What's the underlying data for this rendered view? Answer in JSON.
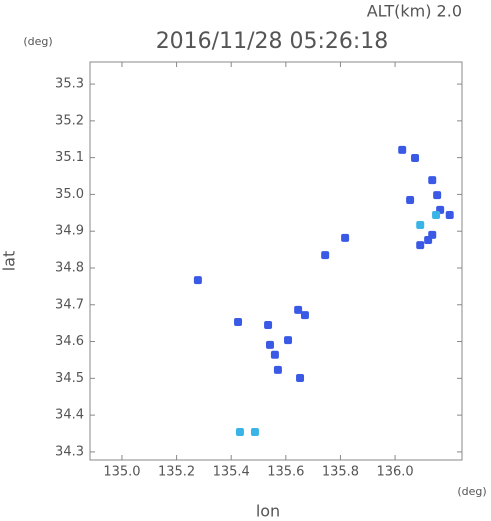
{
  "chart_data": {
    "type": "scatter",
    "title": "2016/11/28 05:26:18",
    "subtitle": "ALT(km) 2.0",
    "y_unit": "(deg)",
    "x_unit": "(deg)",
    "x_label": "lon",
    "y_label": "lat",
    "xlim": [
      134.883,
      136.245
    ],
    "ylim": [
      34.278,
      35.36
    ],
    "xticks": [
      {
        "value": 135,
        "label": "135.0"
      },
      135.2,
      135.4,
      135.6,
      135.8,
      {
        "value": 136,
        "label": "136.0"
      }
    ],
    "yticks": [
      34.3,
      34.4,
      34.5,
      34.6,
      34.7,
      34.8,
      34.9,
      {
        "value": 35,
        "label": "35.0"
      },
      35.1,
      35.2,
      35.3
    ],
    "series": [
      {
        "color": "#3a5ae6",
        "x": [
          136.026,
          136.073,
          136.136,
          136.154,
          136.165,
          136.2,
          136.136,
          136.121,
          136.092,
          136.055,
          135.535,
          135.645,
          135.67,
          135.56,
          135.571,
          135.542,
          135.652,
          135.425,
          135.608,
          135.278,
          135.817,
          135.744
        ],
        "y": [
          35.121,
          35.099,
          35.039,
          34.998,
          34.958,
          34.944,
          34.89,
          34.876,
          34.862,
          34.985,
          34.645,
          34.686,
          34.672,
          34.564,
          34.523,
          34.591,
          34.501,
          34.653,
          34.604,
          34.767,
          34.882,
          34.835
        ]
      },
      {
        "color": "#3ab4e6",
        "x": [
          135.432,
          135.487,
          136.092,
          136.15
        ],
        "y": [
          34.354,
          34.354,
          34.917,
          34.944
        ]
      }
    ]
  }
}
